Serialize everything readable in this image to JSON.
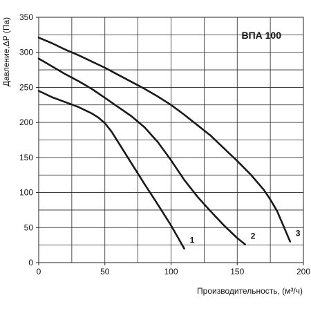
{
  "chart_data": {
    "type": "line",
    "title": "ВПА 100",
    "xlabel": "Производительность, (м³/ч)",
    "ylabel": "Давление,ΔP (Па)",
    "xlim": [
      0,
      200
    ],
    "ylim": [
      0,
      350
    ],
    "xticks": [
      "0",
      "50",
      "100",
      "150",
      "200"
    ],
    "yticks": [
      "0",
      "50",
      "100",
      "150",
      "200",
      "250",
      "300",
      "350"
    ],
    "grid": true,
    "series": [
      {
        "name": "1",
        "x": [
          0,
          10,
          20,
          30,
          40,
          45,
          50,
          55,
          60,
          70,
          80,
          90,
          100,
          110
        ],
        "y": [
          245,
          236,
          229,
          222,
          213,
          207,
          199,
          187,
          172,
          142,
          112,
          83,
          53,
          20
        ]
      },
      {
        "name": "2",
        "x": [
          0,
          10,
          20,
          30,
          40,
          50,
          60,
          70,
          80,
          90,
          100,
          110,
          120,
          130,
          140,
          150,
          156
        ],
        "y": [
          291,
          280,
          269,
          259,
          248,
          235,
          222,
          209,
          193,
          172,
          146,
          118,
          94,
          73,
          53,
          35,
          26
        ]
      },
      {
        "name": "3",
        "x": [
          0,
          10,
          20,
          30,
          40,
          50,
          60,
          70,
          80,
          90,
          100,
          110,
          120,
          130,
          140,
          150,
          160,
          170,
          175,
          180,
          185,
          190
        ],
        "y": [
          321,
          313,
          304,
          296,
          287,
          278,
          268,
          258,
          248,
          237,
          225,
          211,
          196,
          181,
          163,
          145,
          126,
          104,
          90,
          74,
          52,
          30
        ]
      }
    ]
  }
}
